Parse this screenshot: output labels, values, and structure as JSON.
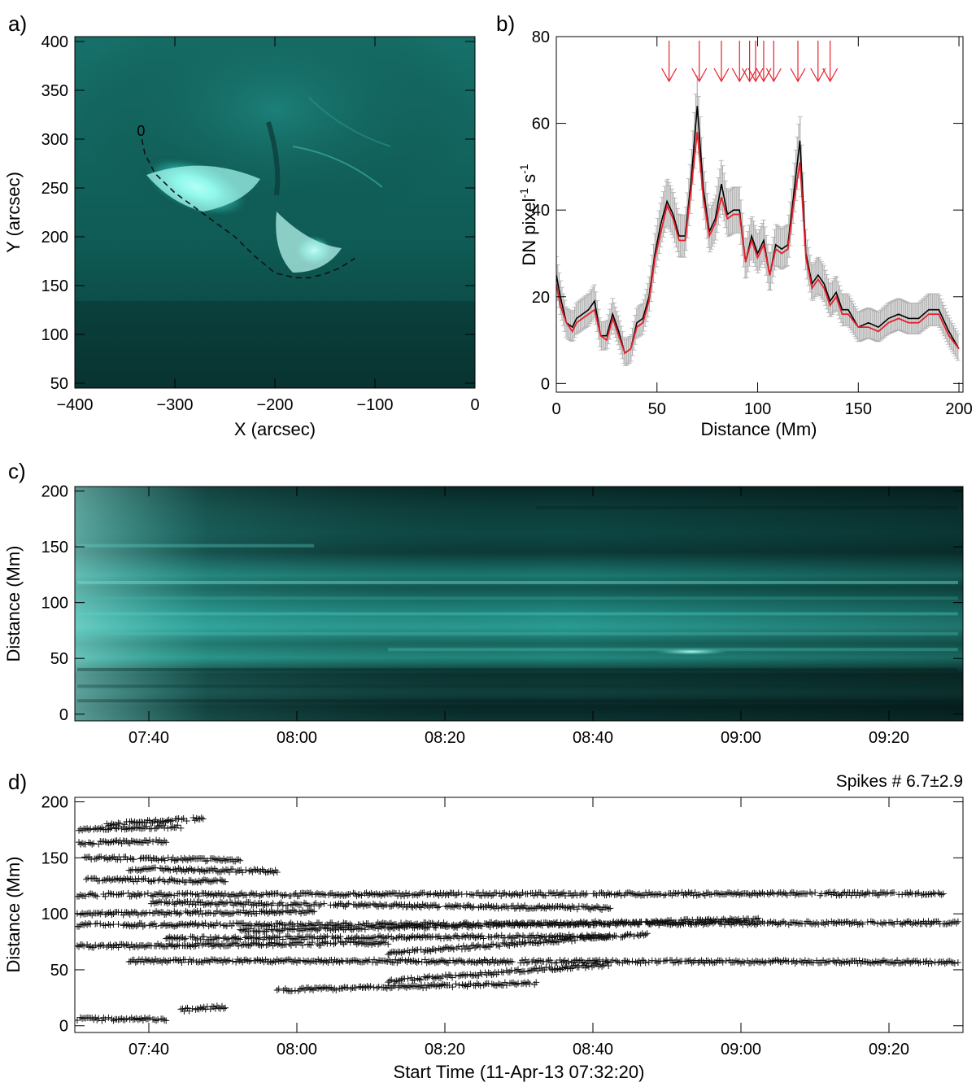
{
  "chart_data": [
    {
      "panel": "a",
      "label": "a)",
      "type": "heatmap",
      "description_colormap": "teal",
      "xlabel": "X (arcsec)",
      "ylabel": "Y (arcsec)",
      "xlim": [
        -400,
        0
      ],
      "ylim": [
        45,
        405
      ],
      "xticks": [
        -400,
        -300,
        -200,
        -100,
        0
      ],
      "yticks": [
        50,
        100,
        150,
        200,
        250,
        300,
        350,
        400
      ],
      "path_label": "0",
      "path": {
        "x": [
          -333,
          -330,
          -320,
          -300,
          -280,
          -260,
          -240,
          -220,
          -200,
          -180,
          -165,
          -150,
          -135,
          -120
        ],
        "y": [
          300,
          285,
          265,
          245,
          230,
          215,
          200,
          180,
          163,
          158,
          158,
          162,
          168,
          178
        ]
      },
      "colors": {
        "image": "#0a5a52",
        "bright": "#b8fff5",
        "path": "#111111"
      }
    },
    {
      "panel": "b",
      "label": "b)",
      "type": "line",
      "xlabel": "Distance (Mm)",
      "ylabel_main": "DN pixel",
      "ylabel_sup1": "-1",
      "ylabel_mid": " s",
      "ylabel_sup2": "-1",
      "xlim": [
        0,
        202
      ],
      "ylim": [
        -2,
        80
      ],
      "xticks": [
        0,
        50,
        100,
        150,
        200
      ],
      "yticks": [
        0,
        20,
        40,
        60,
        80
      ],
      "series": [
        {
          "name": "profile",
          "color": "#000000",
          "x": [
            0,
            2,
            5,
            8,
            10,
            13,
            16,
            19,
            22,
            25,
            28,
            31,
            34,
            37,
            40,
            43,
            46,
            49,
            52,
            55,
            58,
            61,
            64,
            67,
            70,
            73,
            76,
            79,
            82,
            85,
            88,
            91,
            94,
            97,
            100,
            103,
            106,
            109,
            112,
            115,
            118,
            121,
            124,
            127,
            130,
            133,
            136,
            139,
            142,
            145,
            150,
            155,
            160,
            165,
            170,
            175,
            180,
            185,
            190,
            195,
            200
          ],
          "values": [
            25,
            20,
            14,
            13,
            15,
            16,
            17,
            19,
            11,
            11,
            16,
            12,
            7,
            8,
            14,
            15,
            20,
            30,
            37,
            42,
            39,
            34,
            34,
            47,
            64,
            45,
            35,
            38,
            46,
            39,
            40,
            40,
            28,
            34,
            30,
            33,
            25,
            32,
            31,
            32,
            44,
            56,
            30,
            23,
            25,
            23,
            19,
            21,
            17,
            17,
            13,
            14,
            13,
            15,
            16,
            15,
            15,
            17,
            17,
            12,
            8
          ]
        },
        {
          "name": "smoothed",
          "color": "#e8202a",
          "x": [
            0,
            2,
            5,
            8,
            10,
            13,
            16,
            19,
            22,
            25,
            28,
            31,
            34,
            37,
            40,
            43,
            46,
            49,
            52,
            55,
            58,
            61,
            64,
            67,
            70,
            73,
            76,
            79,
            82,
            85,
            88,
            91,
            94,
            97,
            100,
            103,
            106,
            109,
            112,
            115,
            118,
            121,
            124,
            127,
            130,
            133,
            136,
            139,
            142,
            145,
            150,
            155,
            160,
            165,
            170,
            175,
            180,
            185,
            190,
            195,
            200
          ],
          "values": [
            23,
            18,
            14,
            12,
            14,
            15,
            16,
            17,
            11,
            10,
            15,
            11,
            7,
            8,
            13,
            14,
            19,
            29,
            35,
            41,
            38,
            33,
            33,
            45,
            58,
            43,
            34,
            37,
            43,
            38,
            39,
            39,
            28,
            33,
            29,
            32,
            25,
            31,
            30,
            31,
            42,
            51,
            29,
            22,
            24,
            22,
            18,
            20,
            16,
            16,
            13,
            13,
            12,
            14,
            15,
            14,
            14,
            16,
            16,
            11,
            8
          ]
        }
      ],
      "error_bar_color": "#b0b0b0",
      "arrows_x": [
        56,
        71,
        82,
        91,
        96,
        99,
        103,
        108,
        120,
        130,
        136
      ],
      "arrow_color": "#e8202a"
    },
    {
      "panel": "c",
      "label": "c)",
      "type": "heatmap",
      "ylabel": "Distance (Mm)",
      "ylim": [
        -6,
        204
      ],
      "yticks": [
        0,
        50,
        100,
        150,
        200
      ],
      "time_range_min": [
        -2.33,
        117.67
      ],
      "xtick_minutes": [
        7.67,
        27.67,
        47.67,
        67.67,
        87.67,
        107.67
      ],
      "xtick_labels": [
        "07:40",
        "08:00",
        "08:20",
        "08:40",
        "09:00",
        "09:20"
      ],
      "colors": {
        "dark": "#06211f",
        "mid": "#1e7f78",
        "bright": "#8ff0e6"
      }
    },
    {
      "panel": "d",
      "label": "d)",
      "type": "scatter",
      "title": "Spikes # 6.7±2.9",
      "ylabel": "Distance (Mm)",
      "xlabel": "Start Time (11-Apr-13 07:32:20)",
      "ylim": [
        -6,
        204
      ],
      "yticks": [
        0,
        50,
        100,
        150,
        200
      ],
      "time_range_min": [
        -2.33,
        117.67
      ],
      "xtick_minutes": [
        7.67,
        27.67,
        47.67,
        67.67,
        87.67,
        107.67
      ],
      "xtick_labels": [
        "07:40",
        "08:00",
        "08:20",
        "08:40",
        "09:00",
        "09:20"
      ],
      "marker": "+",
      "tracks": [
        {
          "t": [
            -2,
            12
          ],
          "d": [
            175,
            178
          ]
        },
        {
          "t": [
            2,
            15
          ],
          "d": [
            180,
            185
          ]
        },
        {
          "t": [
            -2,
            10
          ],
          "d": [
            163,
            165
          ]
        },
        {
          "t": [
            -1,
            20
          ],
          "d": [
            150,
            148
          ]
        },
        {
          "t": [
            5,
            25
          ],
          "d": [
            140,
            138
          ]
        },
        {
          "t": [
            -1,
            18
          ],
          "d": [
            131,
            129
          ]
        },
        {
          "t": [
            -2,
            115
          ],
          "d": [
            117,
            118
          ]
        },
        {
          "t": [
            8,
            70
          ],
          "d": [
            110,
            105
          ]
        },
        {
          "t": [
            -2,
            30
          ],
          "d": [
            100,
            102
          ]
        },
        {
          "t": [
            -2,
            117
          ],
          "d": [
            90,
            92
          ]
        },
        {
          "t": [
            20,
            90
          ],
          "d": [
            85,
            95
          ]
        },
        {
          "t": [
            -2,
            40
          ],
          "d": [
            71,
            74
          ]
        },
        {
          "t": [
            10,
            70
          ],
          "d": [
            78,
            80
          ]
        },
        {
          "t": [
            5,
            117
          ],
          "d": [
            58,
            57
          ]
        },
        {
          "t": [
            40,
            75
          ],
          "d": [
            65,
            82
          ]
        },
        {
          "t": [
            25,
            60
          ],
          "d": [
            32,
            38
          ]
        },
        {
          "t": [
            40,
            70
          ],
          "d": [
            40,
            55
          ]
        },
        {
          "t": [
            -2,
            10
          ],
          "d": [
            6,
            6
          ]
        },
        {
          "t": [
            12,
            18
          ],
          "d": [
            14,
            17
          ]
        }
      ]
    }
  ]
}
